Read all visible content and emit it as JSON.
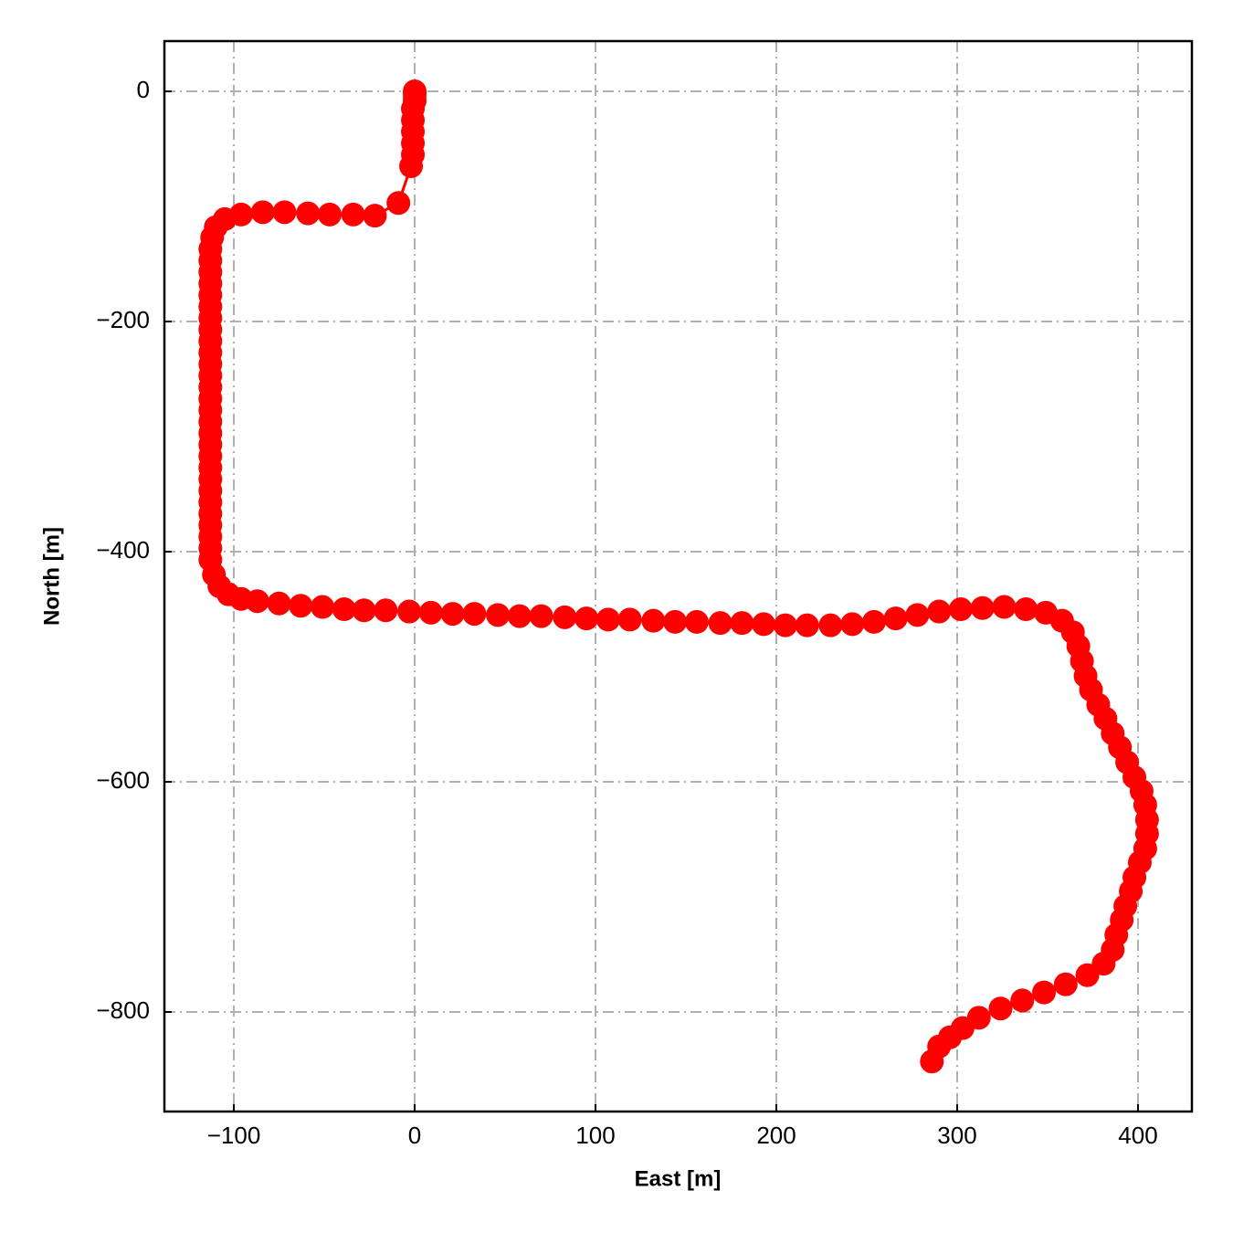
{
  "chart_data": {
    "type": "line",
    "xlabel": "East [m]",
    "ylabel": "North [m]",
    "color": "#ff0000",
    "markers": true,
    "grid": true,
    "xlim": [
      -138.4,
      429.8
    ],
    "ylim": [
      -886.5,
      43.7
    ],
    "xticks": [
      {
        "value": -100,
        "label": "−100"
      },
      0,
      100,
      200,
      300,
      400
    ],
    "yticks": [
      0,
      {
        "value": -200,
        "label": "−200"
      },
      {
        "value": -400,
        "label": "−400"
      },
      {
        "value": -600,
        "label": "−600"
      },
      {
        "value": -800,
        "label": "−800"
      }
    ],
    "x": [
      0,
      0,
      0,
      -1,
      -1,
      -1,
      -1,
      -1,
      -2,
      -9,
      -22,
      -34,
      -47,
      -59,
      -72,
      -84,
      -96,
      -105,
      -110,
      -112,
      -113,
      -113,
      -113,
      -113,
      -113,
      -113,
      -113,
      -113,
      -113,
      -113,
      -113,
      -113,
      -113,
      -113,
      -113,
      -113,
      -113,
      -113,
      -113,
      -113,
      -113,
      -113,
      -113,
      -113,
      -113,
      -113,
      -113,
      -113,
      -111,
      -108,
      -103,
      -96,
      -87,
      -75,
      -63,
      -51,
      -39,
      -28,
      -16,
      -3,
      9,
      21,
      33,
      46,
      58,
      70,
      83,
      95,
      107,
      119,
      132,
      144,
      156,
      169,
      181,
      193,
      205,
      217,
      230,
      242,
      254,
      266,
      278,
      290,
      302,
      314,
      326,
      338,
      349,
      358,
      364,
      367,
      369,
      371,
      374,
      378,
      382,
      386,
      390,
      394,
      398,
      402,
      404,
      405,
      405,
      404,
      401,
      398,
      396,
      393,
      391,
      388,
      386,
      381,
      372,
      360,
      348,
      336,
      324,
      312,
      303,
      296,
      290,
      286
    ],
    "values": [
      0,
      -3,
      -8,
      -15,
      -25,
      -35,
      -45,
      -55,
      -65,
      -97,
      -108,
      -107,
      -107,
      -106,
      -105,
      -105,
      -107,
      -111,
      -118,
      -127,
      -137,
      -147,
      -157,
      -167,
      -177,
      -187,
      -197,
      -207,
      -217,
      -227,
      -237,
      -247,
      -257,
      -267,
      -277,
      -287,
      -297,
      -307,
      -317,
      -327,
      -337,
      -347,
      -357,
      -367,
      -377,
      -387,
      -397,
      -407,
      -420,
      -430,
      -437,
      -441,
      -443,
      -445,
      -447,
      -448,
      -450,
      -451,
      -451,
      -452,
      -453,
      -454,
      -454,
      -455,
      -456,
      -456,
      -457,
      -458,
      -459,
      -459,
      -460,
      -461,
      -461,
      -462,
      -462,
      -463,
      -464,
      -464,
      -464,
      -463,
      -461,
      -458,
      -455,
      -452,
      -450,
      -449,
      -448,
      -450,
      -453,
      -460,
      -470,
      -482,
      -495,
      -508,
      -520,
      -533,
      -545,
      -558,
      -570,
      -583,
      -596,
      -608,
      -620,
      -633,
      -645,
      -658,
      -670,
      -683,
      -695,
      -708,
      -720,
      -733,
      -746,
      -758,
      -768,
      -776,
      -783,
      -790,
      -797,
      -805,
      -814,
      -822,
      -830,
      -843
    ]
  }
}
